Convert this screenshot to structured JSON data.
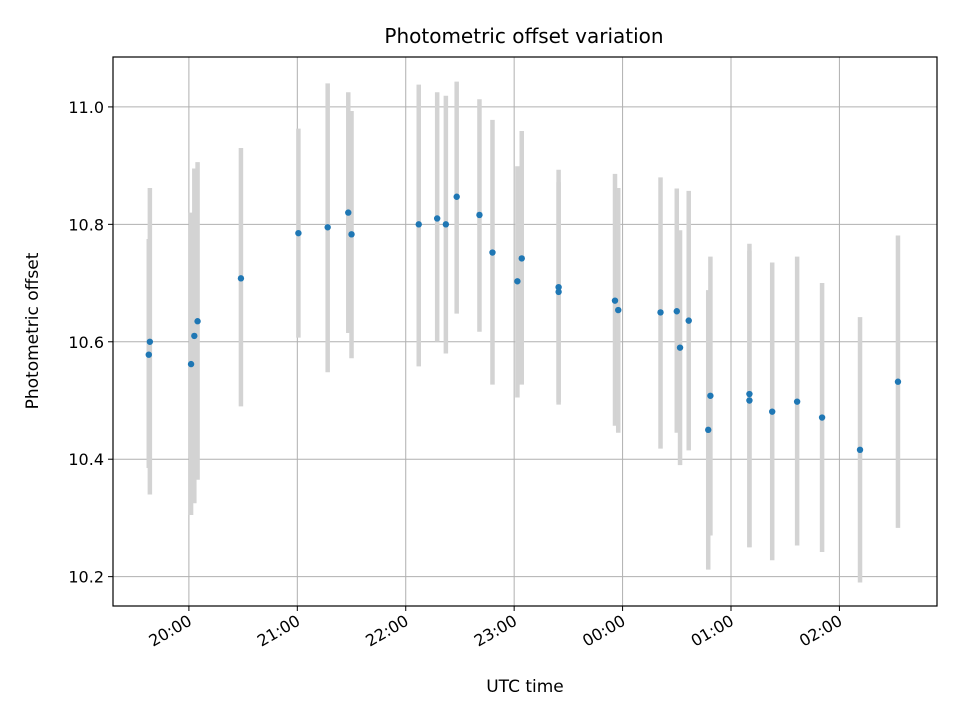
{
  "chart_data": {
    "type": "scatter",
    "title": "Photometric offset variation",
    "xlabel": "UTC time",
    "ylabel": "Photometric offset",
    "x_tick_labels": [
      "20:00",
      "21:00",
      "22:00",
      "23:00",
      "00:00",
      "01:00",
      "02:00"
    ],
    "y_tick_labels": [
      "10.2",
      "10.4",
      "10.6",
      "10.8",
      "11.0"
    ],
    "y_ticks": [
      10.2,
      10.4,
      10.6,
      10.8,
      11.0
    ],
    "ylim": [
      10.15,
      11.085
    ],
    "xlim_hours": [
      19.3,
      26.9
    ],
    "grid": true,
    "colors": {
      "point": "#1f77b4",
      "errorbar": "#d3d3d3",
      "grid": "#b0b0b0"
    },
    "series": [
      {
        "x": [
          19.63,
          19.64,
          20.02,
          20.05,
          20.08,
          20.48,
          21.01,
          21.28,
          21.47,
          21.5,
          22.12,
          22.29,
          22.37,
          22.47,
          22.68,
          22.8,
          23.03,
          23.07,
          23.41,
          23.41,
          23.93,
          23.96,
          24.35,
          24.5,
          24.53,
          24.61,
          24.79,
          24.81,
          25.17,
          25.17,
          25.38,
          25.61,
          25.84,
          26.19,
          26.54
        ],
        "y": [
          10.578,
          10.6,
          10.562,
          10.61,
          10.635,
          10.708,
          10.785,
          10.795,
          10.82,
          10.783,
          10.8,
          10.81,
          10.8,
          10.847,
          10.816,
          10.752,
          10.703,
          10.742,
          10.693,
          10.685,
          10.67,
          10.654,
          10.65,
          10.652,
          10.59,
          10.636,
          10.45,
          10.508,
          10.511,
          10.5,
          10.481,
          10.498,
          10.471,
          10.416,
          10.532
        ],
        "yerr_low": [
          10.385,
          10.34,
          10.305,
          10.325,
          10.365,
          10.49,
          10.607,
          10.548,
          10.615,
          10.572,
          10.558,
          10.6,
          10.58,
          10.648,
          10.617,
          10.527,
          10.505,
          10.527,
          10.493,
          10.497,
          10.457,
          10.445,
          10.418,
          10.445,
          10.39,
          10.415,
          10.212,
          10.27,
          10.25,
          10.25,
          10.228,
          10.253,
          10.242,
          10.19,
          10.283
        ],
        "yerr_high": [
          10.775,
          10.862,
          10.82,
          10.895,
          10.906,
          10.93,
          10.963,
          11.04,
          11.025,
          10.993,
          11.038,
          11.025,
          11.019,
          11.043,
          11.013,
          10.978,
          10.899,
          10.959,
          10.893,
          10.872,
          10.886,
          10.862,
          10.88,
          10.861,
          10.79,
          10.857,
          10.688,
          10.745,
          10.767,
          10.755,
          10.735,
          10.745,
          10.7,
          10.642,
          10.781
        ]
      }
    ]
  }
}
